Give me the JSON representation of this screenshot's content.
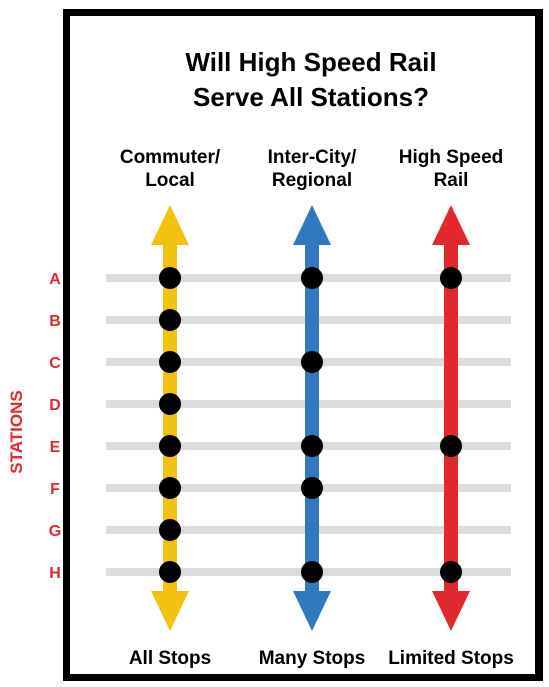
{
  "title": {
    "line1": "Will High Speed Rail",
    "line2": "Serve All Stations?"
  },
  "axis_label": "STATIONS",
  "stations": [
    "A",
    "B",
    "C",
    "D",
    "E",
    "F",
    "G",
    "H"
  ],
  "columns": [
    {
      "id": "commuter",
      "head_line1": "Commuter/",
      "head_line2": "Local",
      "footer": "All Stops",
      "color": "#f2c20f",
      "stops": [
        "A",
        "B",
        "C",
        "D",
        "E",
        "F",
        "G",
        "H"
      ]
    },
    {
      "id": "intercity",
      "head_line1": "Inter-City/",
      "head_line2": "Regional",
      "footer": "Many Stops",
      "color": "#2f78bf",
      "stops": [
        "A",
        "C",
        "E",
        "F",
        "H"
      ]
    },
    {
      "id": "highspeed",
      "head_line1": "High Speed",
      "head_line2": "Rail",
      "footer": "Limited Stops",
      "color": "#e0282e",
      "stops": [
        "A",
        "E",
        "H"
      ]
    }
  ],
  "colors": {
    "station_label": "#e0282e",
    "track_line": "#dcdcdc",
    "stop_dot": "#000000",
    "frame": "#000000"
  }
}
